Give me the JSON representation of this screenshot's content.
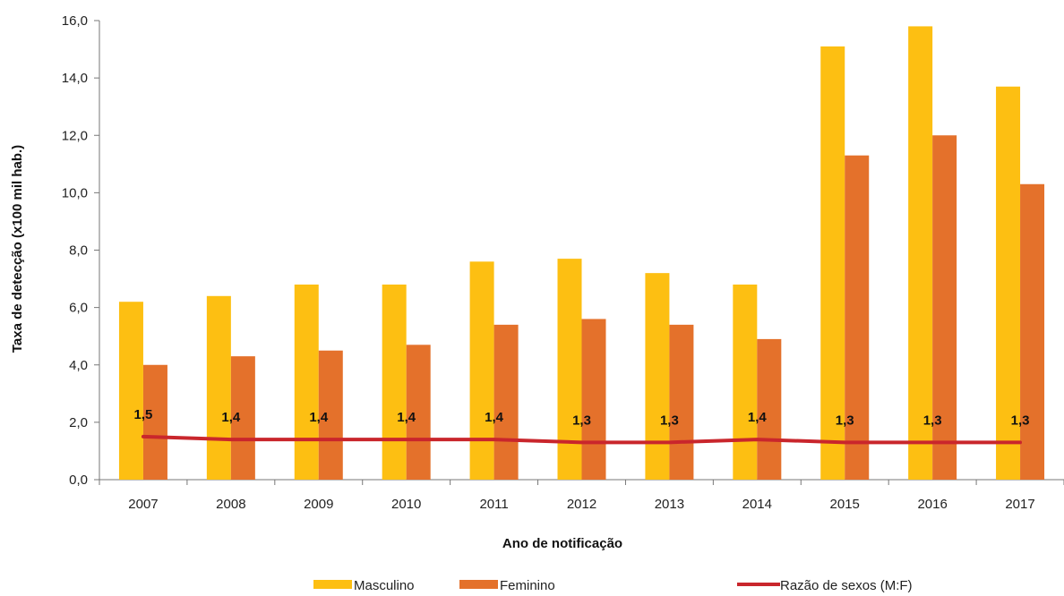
{
  "chart_data": {
    "type": "bar",
    "categories": [
      "2007",
      "2008",
      "2009",
      "2010",
      "2011",
      "2012",
      "2013",
      "2014",
      "2015",
      "2016",
      "2017"
    ],
    "series": [
      {
        "name": "Masculino",
        "type": "bar",
        "color": "#FDBF12",
        "values": [
          6.2,
          6.4,
          6.8,
          6.8,
          7.6,
          7.7,
          7.2,
          6.8,
          15.1,
          15.8,
          13.7
        ]
      },
      {
        "name": "Feminino",
        "type": "bar",
        "color": "#E4712B",
        "values": [
          4.0,
          4.3,
          4.5,
          4.7,
          5.4,
          5.6,
          5.4,
          4.9,
          11.3,
          12.0,
          10.3
        ]
      },
      {
        "name": "Razão de sexos (M:F)",
        "type": "line",
        "color": "#C9262C",
        "values": [
          1.5,
          1.4,
          1.4,
          1.4,
          1.4,
          1.3,
          1.3,
          1.4,
          1.3,
          1.3,
          1.3
        ],
        "labels": [
          "1,5",
          "1,4",
          "1,4",
          "1,4",
          "1,4",
          "1,3",
          "1,3",
          "1,4",
          "1,3",
          "1,3",
          "1,3"
        ]
      }
    ],
    "xlabel": "Ano de notificação",
    "ylabel": "Taxa de detecção (x100 mil hab.)",
    "ylim": [
      0,
      16
    ],
    "yticks": [
      "0,0",
      "2,0",
      "4,0",
      "6,0",
      "8,0",
      "10,0",
      "12,0",
      "14,0",
      "16,0"
    ],
    "grid": false,
    "legend_position": "bottom"
  }
}
